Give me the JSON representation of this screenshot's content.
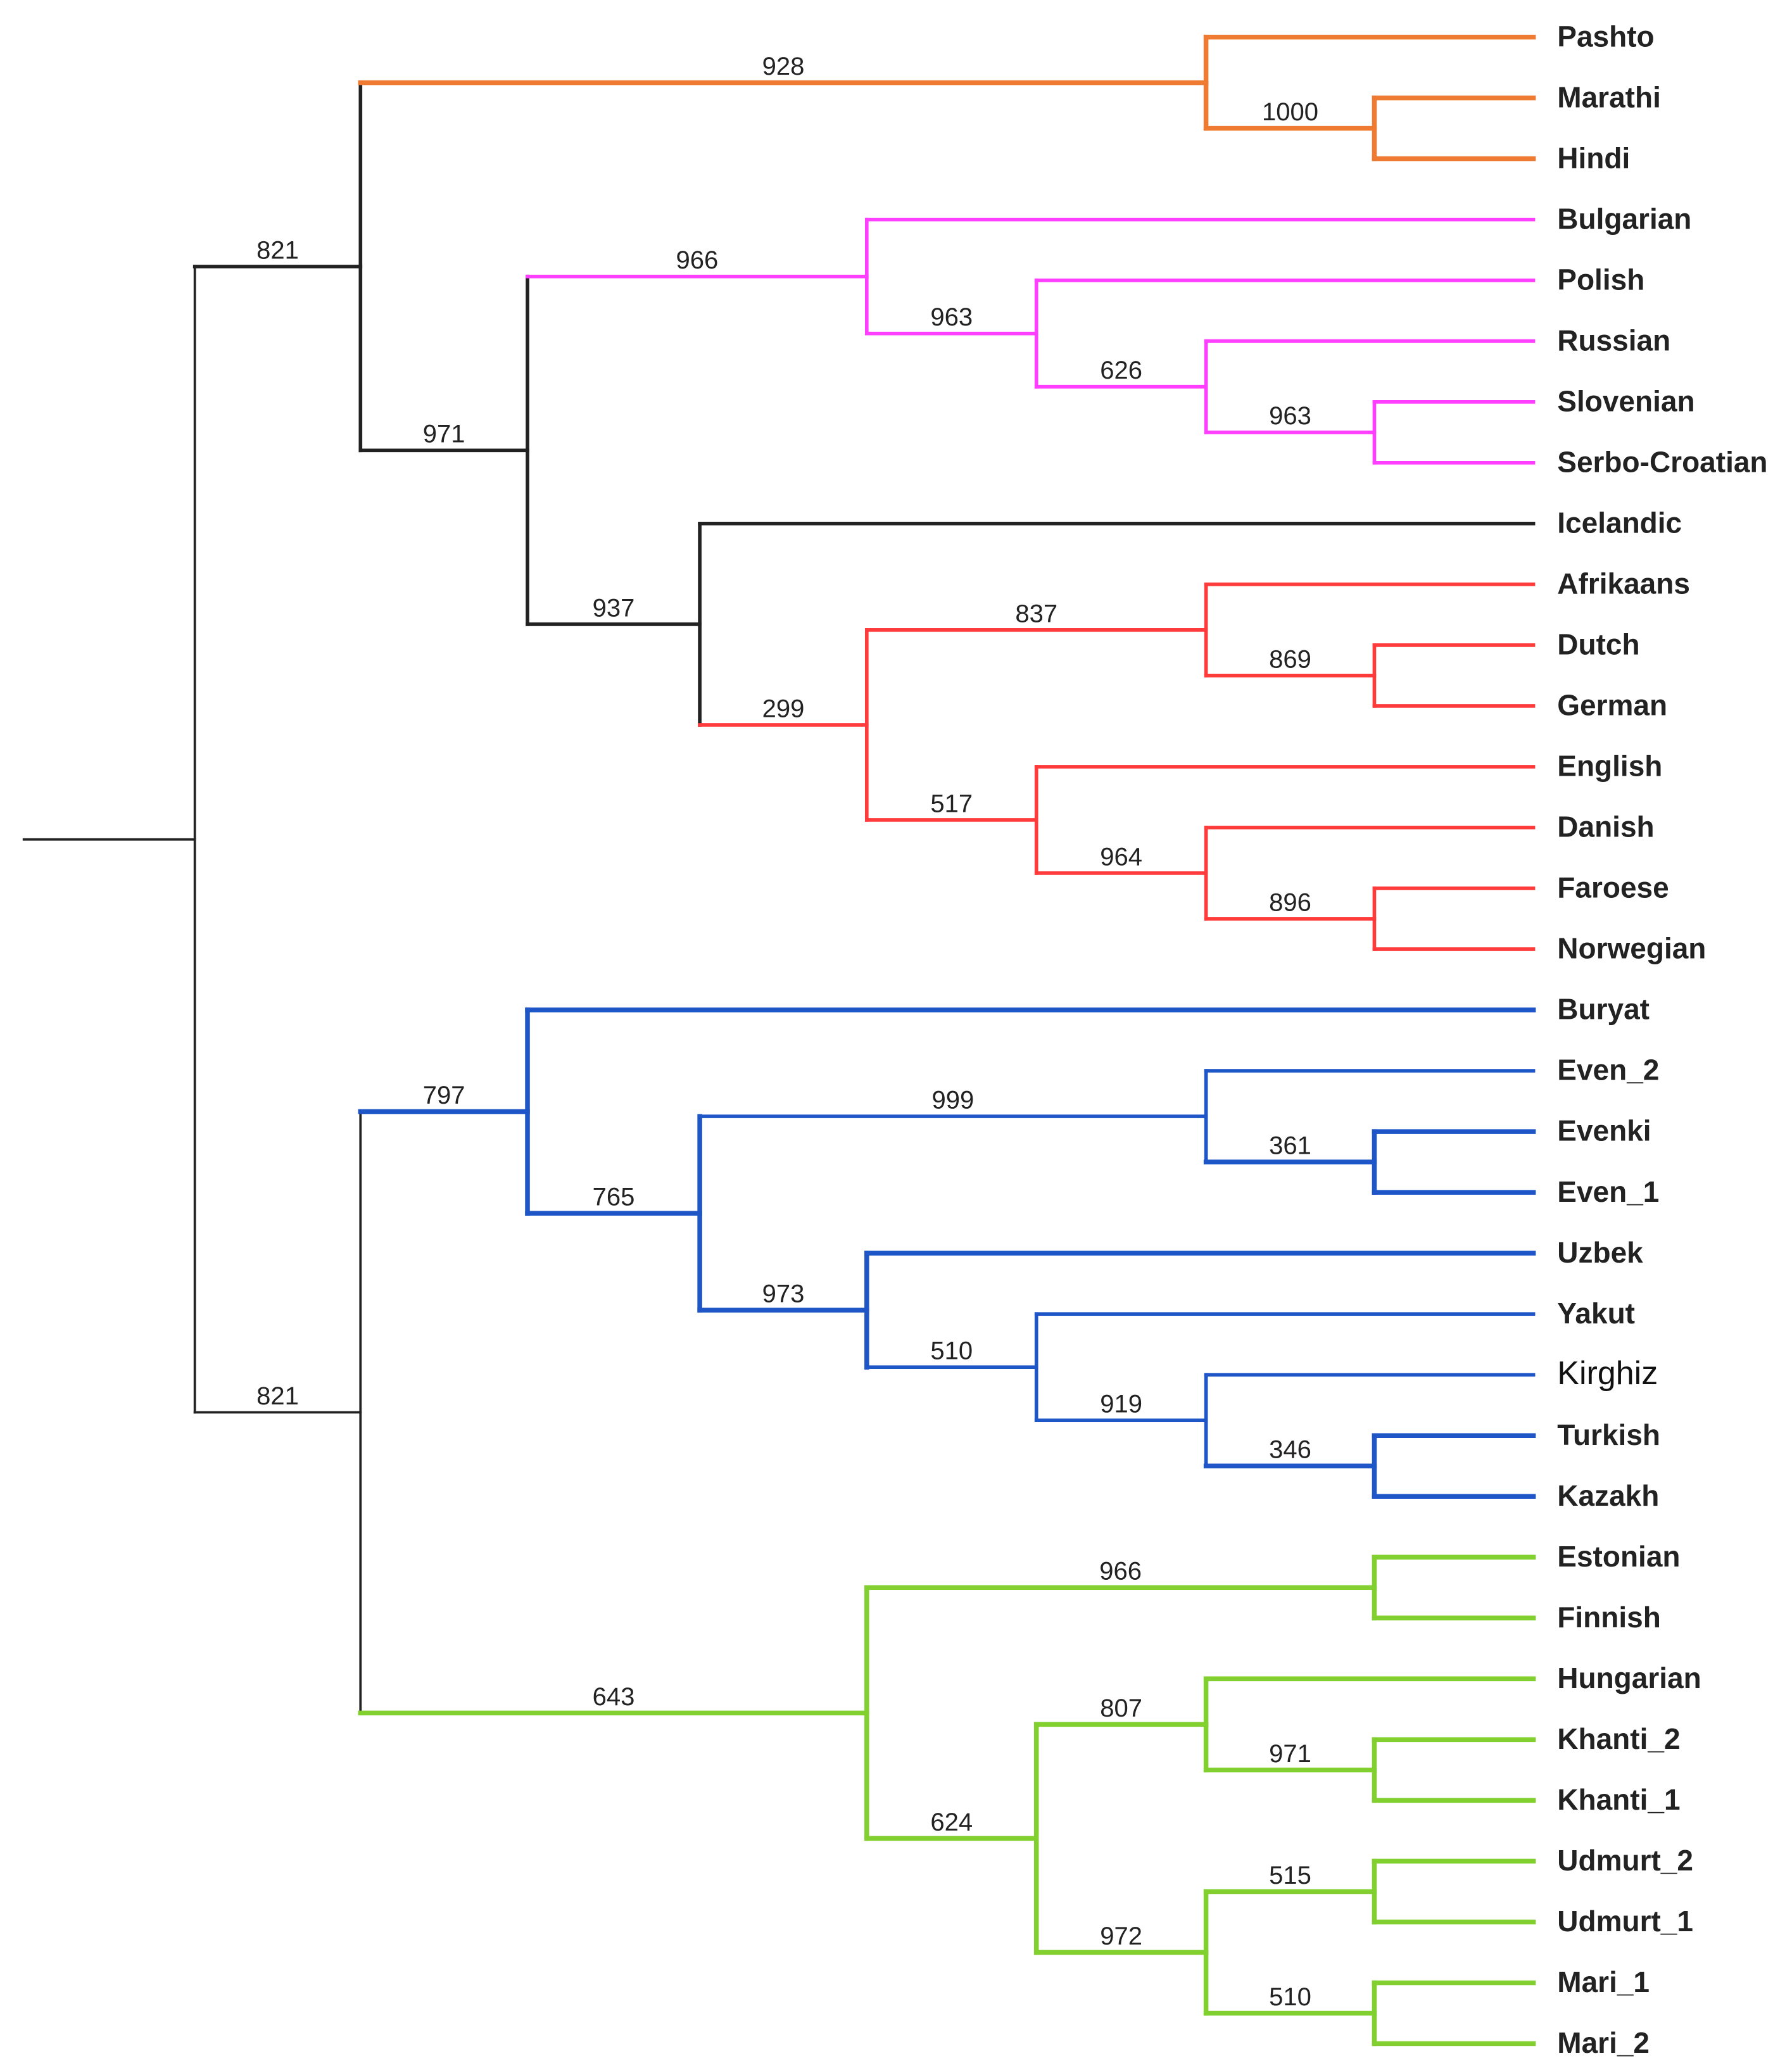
{
  "colors": {
    "root": "#222222",
    "indo_iranian": "#EF7B32",
    "slavic": "#FF3FFF",
    "germanic": "#FF3B3B",
    "turkic_tungusic_mongolic": "#1E56C8",
    "uralic": "#82D02F"
  },
  "leaves": [
    "Pashto",
    "Marathi",
    "Hindi",
    "Bulgarian",
    "Polish",
    "Russian",
    "Slovenian",
    "Serbo-Croatian",
    "Icelandic",
    "Afrikaans",
    "Dutch",
    "German",
    "English",
    "Danish",
    "Faroese",
    "Norwegian",
    "Buryat",
    "Even_2",
    "Evenki",
    "Even_1",
    "Uzbek",
    "Yakut",
    "Kirghiz",
    "Turkish",
    "Kazakh",
    "Estonian",
    "Finnish",
    "Hungarian",
    "Khanti_2",
    "Khanti_1",
    "Udmurt_2",
    "Udmurt_1",
    "Mari_1",
    "Mari_2"
  ],
  "bootstrap": {
    "root_top": "821",
    "root_bottom": "821",
    "indo_iranian": "928",
    "marathi_hindi": "1000",
    "slavic_germanic": "971",
    "slavic": "966",
    "slavic_sub": "963",
    "russian_group": "626",
    "slovenian_serbo": "963",
    "germanic": "937",
    "germanic_sub": "299",
    "west_germanic": "837",
    "dutch_german": "869",
    "english_nordic": "517",
    "nordic": "964",
    "faroese_norwegian": "896",
    "altaic": "797",
    "altaic_sub": "765",
    "tungusic": "999",
    "evenki_even": "361",
    "turkic": "973",
    "turkic_sub": "510",
    "kipchak": "919",
    "turkish_kazakh": "346",
    "uralic": "643",
    "finnic": "966",
    "ugric_permic": "624",
    "ugric": "807",
    "khanti": "971",
    "permic_mari": "972",
    "udmurt": "515",
    "mari": "510"
  }
}
